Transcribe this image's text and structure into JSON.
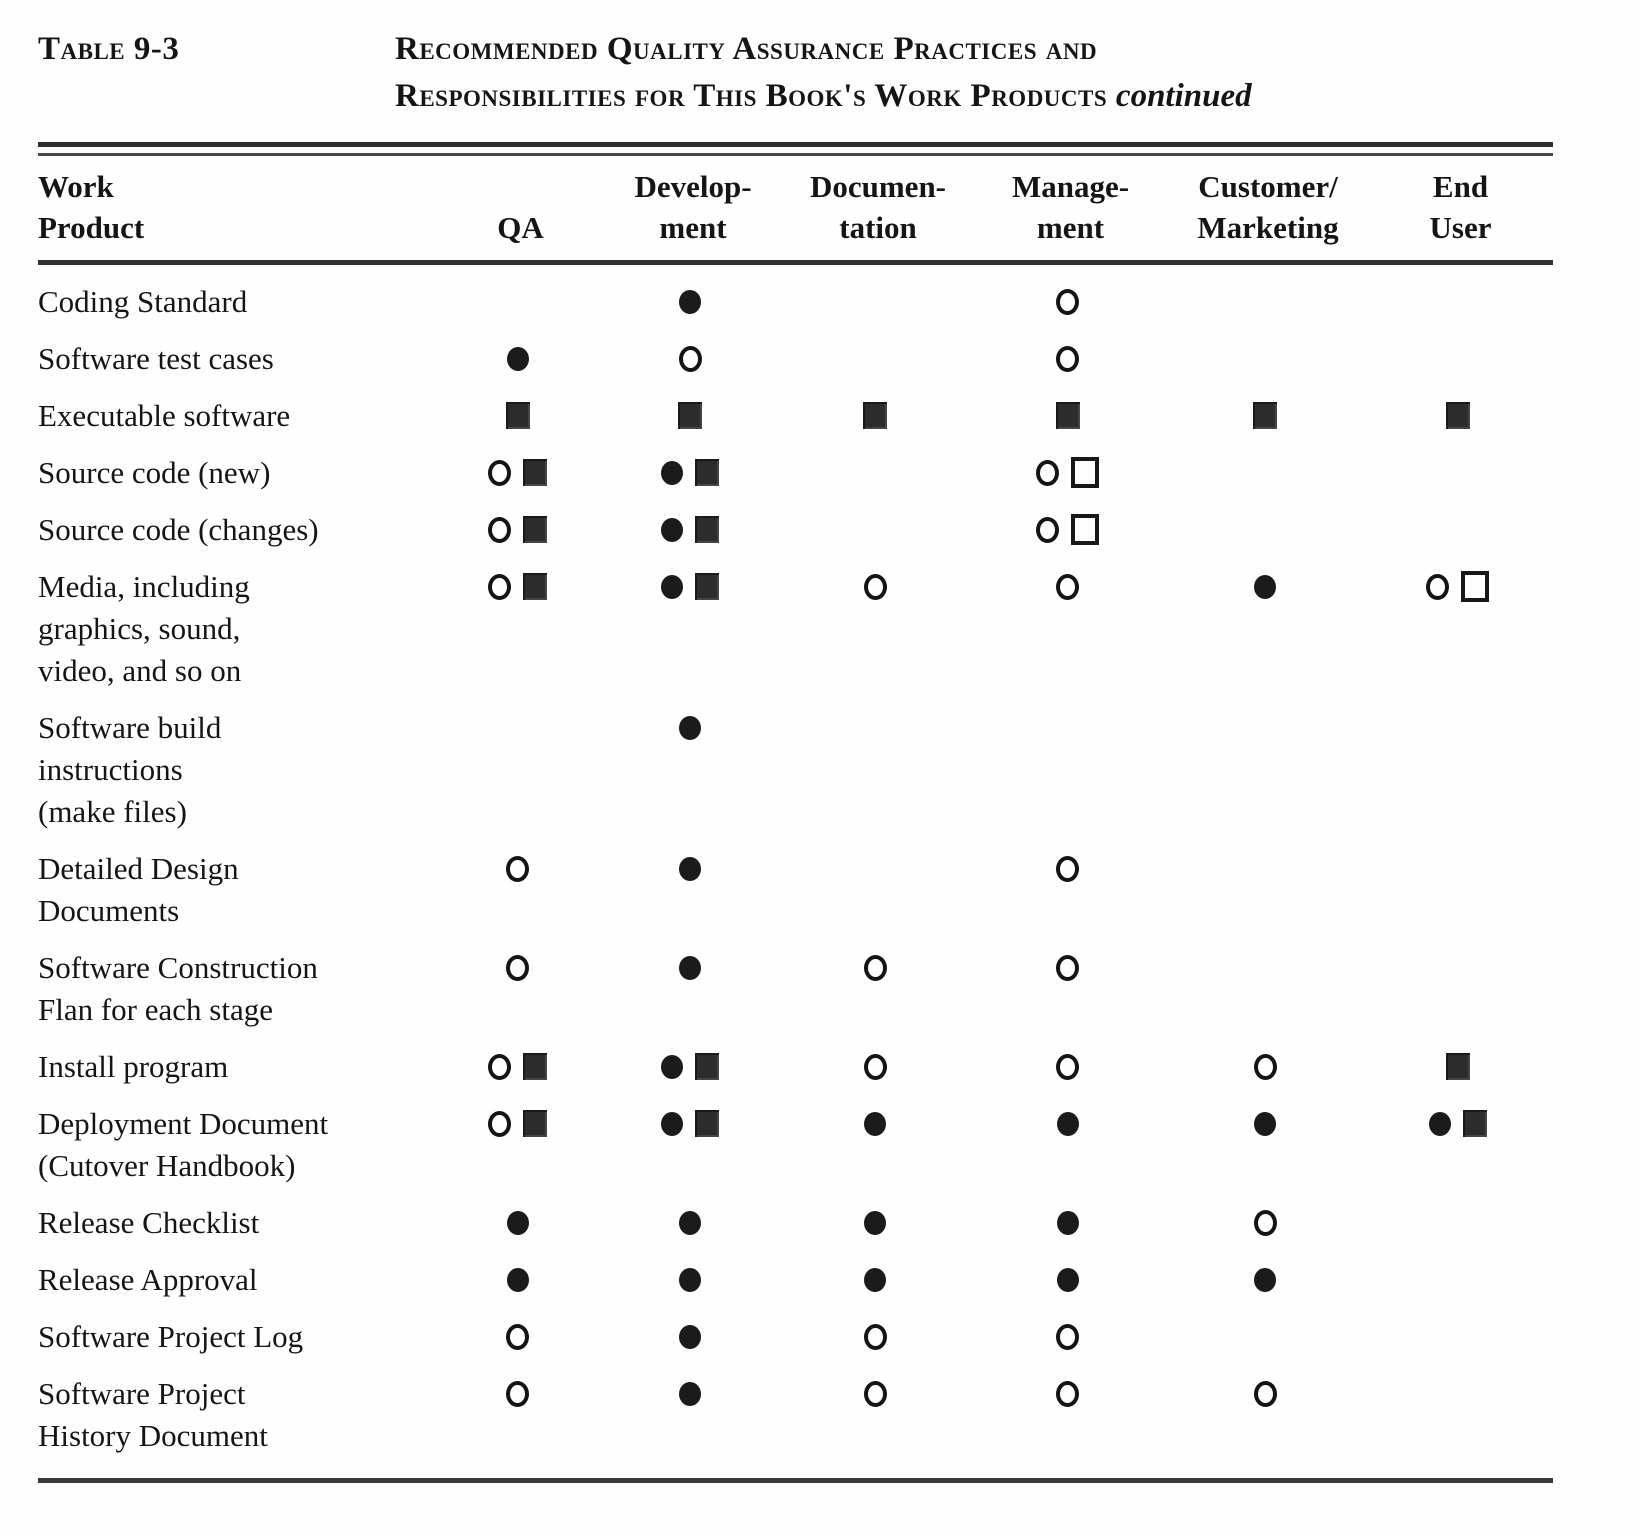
{
  "page": {
    "paper_color": "#fefefe",
    "ink_color": "#151515"
  },
  "caption": {
    "table_label": "Table 9-3",
    "title_line1": "Recommended Quality Assurance Practices and",
    "title_line2": "Responsibilities for This Book's Work Products",
    "continued_note": "continued"
  },
  "table": {
    "columns": [
      {
        "id": "work_product",
        "label": "Work\nProduct"
      },
      {
        "id": "qa",
        "label": "QA"
      },
      {
        "id": "development",
        "label": "Develop-\nment"
      },
      {
        "id": "documentation",
        "label": "Documen-\ntation"
      },
      {
        "id": "management",
        "label": "Manage-\nment"
      },
      {
        "id": "customer_marketing",
        "label": "Customer/\nMarketing"
      },
      {
        "id": "end_user",
        "label": "End\nUser"
      }
    ],
    "symbol_names": {
      "open-circle": "open circle",
      "filled-circle": "filled circle",
      "open-square": "open square",
      "filled-square": "filled square"
    },
    "rows": [
      {
        "name": "Coding Standard",
        "cells": {
          "qa": [],
          "development": [
            "filled-circle"
          ],
          "documentation": [],
          "management": [
            "open-circle"
          ],
          "customer_marketing": [],
          "end_user": []
        }
      },
      {
        "name": "Software test cases",
        "cells": {
          "qa": [
            "filled-circle"
          ],
          "development": [
            "open-circle"
          ],
          "documentation": [],
          "management": [
            "open-circle"
          ],
          "customer_marketing": [],
          "end_user": []
        }
      },
      {
        "name": "Executable software",
        "cells": {
          "qa": [
            "filled-square"
          ],
          "development": [
            "filled-square"
          ],
          "documentation": [
            "filled-square"
          ],
          "management": [
            "filled-square"
          ],
          "customer_marketing": [
            "filled-square"
          ],
          "end_user": [
            "filled-square"
          ]
        }
      },
      {
        "name": "Source code (new)",
        "cells": {
          "qa": [
            "open-circle",
            "filled-square"
          ],
          "development": [
            "filled-circle",
            "filled-square"
          ],
          "documentation": [],
          "management": [
            "open-circle",
            "open-square"
          ],
          "customer_marketing": [],
          "end_user": []
        }
      },
      {
        "name": "Source code (changes)",
        "cells": {
          "qa": [
            "open-circle",
            "filled-square"
          ],
          "development": [
            "filled-circle",
            "filled-square"
          ],
          "documentation": [],
          "management": [
            "open-circle",
            "open-square"
          ],
          "customer_marketing": [],
          "end_user": []
        }
      },
      {
        "name": "Media, including\ngraphics, sound,\nvideo, and so on",
        "cells": {
          "qa": [
            "open-circle",
            "filled-square"
          ],
          "development": [
            "filled-circle",
            "filled-square"
          ],
          "documentation": [
            "open-circle"
          ],
          "management": [
            "open-circle"
          ],
          "customer_marketing": [
            "filled-circle"
          ],
          "end_user": [
            "open-circle",
            "open-square"
          ]
        }
      },
      {
        "name": "Software build\ninstructions\n(make files)",
        "cells": {
          "qa": [],
          "development": [
            "filled-circle"
          ],
          "documentation": [],
          "management": [],
          "customer_marketing": [],
          "end_user": []
        }
      },
      {
        "name": "Detailed Design\nDocuments",
        "cells": {
          "qa": [
            "open-circle"
          ],
          "development": [
            "filled-circle"
          ],
          "documentation": [],
          "management": [
            "open-circle"
          ],
          "customer_marketing": [],
          "end_user": []
        }
      },
      {
        "name": "Software Construction\nFlan for each stage",
        "cells": {
          "qa": [
            "open-circle"
          ],
          "development": [
            "filled-circle"
          ],
          "documentation": [
            "open-circle"
          ],
          "management": [
            "open-circle"
          ],
          "customer_marketing": [],
          "end_user": []
        }
      },
      {
        "name": "Install program",
        "cells": {
          "qa": [
            "open-circle",
            "filled-square"
          ],
          "development": [
            "filled-circle",
            "filled-square"
          ],
          "documentation": [
            "open-circle"
          ],
          "management": [
            "open-circle"
          ],
          "customer_marketing": [
            "open-circle"
          ],
          "end_user": [
            "filled-square"
          ]
        }
      },
      {
        "name": "Deployment Document\n(Cutover Handbook)",
        "cells": {
          "qa": [
            "open-circle",
            "filled-square"
          ],
          "development": [
            "filled-circle",
            "filled-square"
          ],
          "documentation": [
            "filled-circle"
          ],
          "management": [
            "filled-circle"
          ],
          "customer_marketing": [
            "filled-circle"
          ],
          "end_user": [
            "filled-circle",
            "filled-square"
          ]
        }
      },
      {
        "name": "Release Checklist",
        "cells": {
          "qa": [
            "filled-circle"
          ],
          "development": [
            "filled-circle"
          ],
          "documentation": [
            "filled-circle"
          ],
          "management": [
            "filled-circle"
          ],
          "customer_marketing": [
            "open-circle"
          ],
          "end_user": []
        }
      },
      {
        "name": "Release Approval",
        "cells": {
          "qa": [
            "filled-circle"
          ],
          "development": [
            "filled-circle"
          ],
          "documentation": [
            "filled-circle"
          ],
          "management": [
            "filled-circle"
          ],
          "customer_marketing": [
            "filled-circle"
          ],
          "end_user": []
        }
      },
      {
        "name": "Software Project Log",
        "cells": {
          "qa": [
            "open-circle"
          ],
          "development": [
            "filled-circle"
          ],
          "documentation": [
            "open-circle"
          ],
          "management": [
            "open-circle"
          ],
          "customer_marketing": [],
          "end_user": []
        }
      },
      {
        "name": "Software Project\nHistory Document",
        "cells": {
          "qa": [
            "open-circle"
          ],
          "development": [
            "filled-circle"
          ],
          "documentation": [
            "open-circle"
          ],
          "management": [
            "open-circle"
          ],
          "customer_marketing": [
            "open-circle"
          ],
          "end_user": []
        }
      }
    ]
  }
}
